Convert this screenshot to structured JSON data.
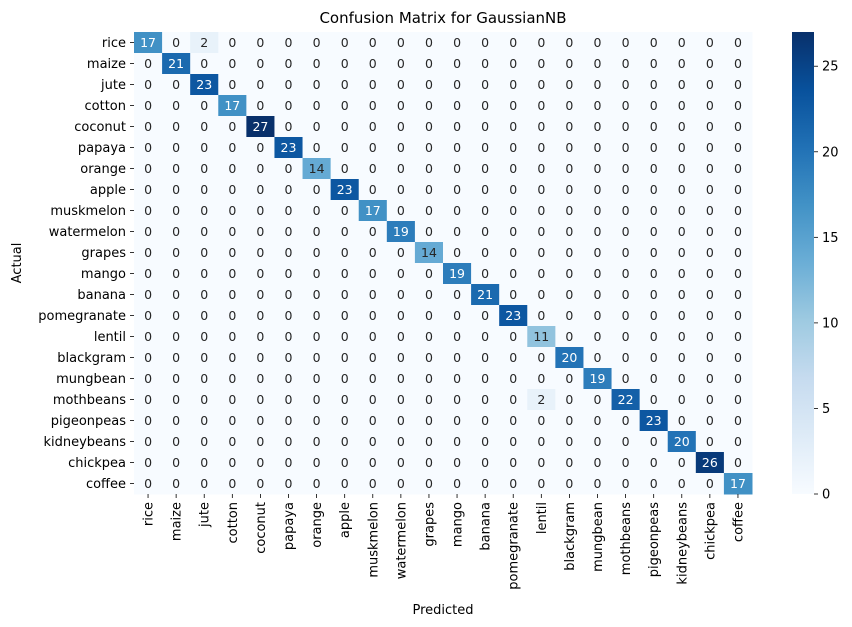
{
  "chart_data": {
    "type": "heatmap",
    "title": "Confusion Matrix for GaussianNB",
    "xlabel": "Predicted",
    "ylabel": "Actual",
    "labels": [
      "rice",
      "maize",
      "jute",
      "cotton",
      "coconut",
      "papaya",
      "orange",
      "apple",
      "muskmelon",
      "watermelon",
      "grapes",
      "mango",
      "banana",
      "pomegranate",
      "lentil",
      "blackgram",
      "mungbean",
      "mothbeans",
      "pigeonpeas",
      "kidneybeans",
      "chickpea",
      "coffee"
    ],
    "matrix": [
      [
        17,
        0,
        2,
        0,
        0,
        0,
        0,
        0,
        0,
        0,
        0,
        0,
        0,
        0,
        0,
        0,
        0,
        0,
        0,
        0,
        0,
        0
      ],
      [
        0,
        21,
        0,
        0,
        0,
        0,
        0,
        0,
        0,
        0,
        0,
        0,
        0,
        0,
        0,
        0,
        0,
        0,
        0,
        0,
        0,
        0
      ],
      [
        0,
        0,
        23,
        0,
        0,
        0,
        0,
        0,
        0,
        0,
        0,
        0,
        0,
        0,
        0,
        0,
        0,
        0,
        0,
        0,
        0,
        0
      ],
      [
        0,
        0,
        0,
        17,
        0,
        0,
        0,
        0,
        0,
        0,
        0,
        0,
        0,
        0,
        0,
        0,
        0,
        0,
        0,
        0,
        0,
        0
      ],
      [
        0,
        0,
        0,
        0,
        27,
        0,
        0,
        0,
        0,
        0,
        0,
        0,
        0,
        0,
        0,
        0,
        0,
        0,
        0,
        0,
        0,
        0
      ],
      [
        0,
        0,
        0,
        0,
        0,
        23,
        0,
        0,
        0,
        0,
        0,
        0,
        0,
        0,
        0,
        0,
        0,
        0,
        0,
        0,
        0,
        0
      ],
      [
        0,
        0,
        0,
        0,
        0,
        0,
        14,
        0,
        0,
        0,
        0,
        0,
        0,
        0,
        0,
        0,
        0,
        0,
        0,
        0,
        0,
        0
      ],
      [
        0,
        0,
        0,
        0,
        0,
        0,
        0,
        23,
        0,
        0,
        0,
        0,
        0,
        0,
        0,
        0,
        0,
        0,
        0,
        0,
        0,
        0
      ],
      [
        0,
        0,
        0,
        0,
        0,
        0,
        0,
        0,
        17,
        0,
        0,
        0,
        0,
        0,
        0,
        0,
        0,
        0,
        0,
        0,
        0,
        0
      ],
      [
        0,
        0,
        0,
        0,
        0,
        0,
        0,
        0,
        0,
        19,
        0,
        0,
        0,
        0,
        0,
        0,
        0,
        0,
        0,
        0,
        0,
        0
      ],
      [
        0,
        0,
        0,
        0,
        0,
        0,
        0,
        0,
        0,
        0,
        14,
        0,
        0,
        0,
        0,
        0,
        0,
        0,
        0,
        0,
        0,
        0
      ],
      [
        0,
        0,
        0,
        0,
        0,
        0,
        0,
        0,
        0,
        0,
        0,
        19,
        0,
        0,
        0,
        0,
        0,
        0,
        0,
        0,
        0,
        0
      ],
      [
        0,
        0,
        0,
        0,
        0,
        0,
        0,
        0,
        0,
        0,
        0,
        0,
        21,
        0,
        0,
        0,
        0,
        0,
        0,
        0,
        0,
        0
      ],
      [
        0,
        0,
        0,
        0,
        0,
        0,
        0,
        0,
        0,
        0,
        0,
        0,
        0,
        23,
        0,
        0,
        0,
        0,
        0,
        0,
        0,
        0
      ],
      [
        0,
        0,
        0,
        0,
        0,
        0,
        0,
        0,
        0,
        0,
        0,
        0,
        0,
        0,
        11,
        0,
        0,
        0,
        0,
        0,
        0,
        0
      ],
      [
        0,
        0,
        0,
        0,
        0,
        0,
        0,
        0,
        0,
        0,
        0,
        0,
        0,
        0,
        0,
        20,
        0,
        0,
        0,
        0,
        0,
        0
      ],
      [
        0,
        0,
        0,
        0,
        0,
        0,
        0,
        0,
        0,
        0,
        0,
        0,
        0,
        0,
        0,
        0,
        19,
        0,
        0,
        0,
        0,
        0
      ],
      [
        0,
        0,
        0,
        0,
        0,
        0,
        0,
        0,
        0,
        0,
        0,
        0,
        0,
        0,
        2,
        0,
        0,
        22,
        0,
        0,
        0,
        0
      ],
      [
        0,
        0,
        0,
        0,
        0,
        0,
        0,
        0,
        0,
        0,
        0,
        0,
        0,
        0,
        0,
        0,
        0,
        0,
        23,
        0,
        0,
        0
      ],
      [
        0,
        0,
        0,
        0,
        0,
        0,
        0,
        0,
        0,
        0,
        0,
        0,
        0,
        0,
        0,
        0,
        0,
        0,
        0,
        20,
        0,
        0
      ],
      [
        0,
        0,
        0,
        0,
        0,
        0,
        0,
        0,
        0,
        0,
        0,
        0,
        0,
        0,
        0,
        0,
        0,
        0,
        0,
        0,
        26,
        0
      ],
      [
        0,
        0,
        0,
        0,
        0,
        0,
        0,
        0,
        0,
        0,
        0,
        0,
        0,
        0,
        0,
        0,
        0,
        0,
        0,
        0,
        0,
        17
      ]
    ],
    "colormap": "Blues",
    "vmin": 0,
    "vmax": 27,
    "colorbar_ticks": [
      0,
      5,
      10,
      15,
      20,
      25
    ],
    "annotated": true,
    "grid": false
  }
}
